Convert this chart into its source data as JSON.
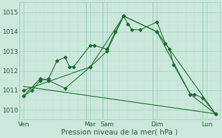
{
  "title": "",
  "xlabel": "Pression niveau de la mer( hPa )",
  "ylabel": "",
  "bg_color": "#cce8dc",
  "grid_color_major": "#99ccbb",
  "grid_color_minor": "#bbddd0",
  "line_color": "#1a6b2a",
  "ylim": [
    1009.5,
    1015.5
  ],
  "xlim": [
    0,
    24
  ],
  "day_labels": [
    "Ven",
    "Mar",
    "Sam",
    "Dim",
    "Lun"
  ],
  "day_x": [
    0.5,
    8.5,
    10.5,
    16.5,
    22.5
  ],
  "vline_positions": [
    0,
    8,
    10,
    16,
    22,
    24
  ],
  "series": [
    {
      "x": [
        0.5,
        1.5,
        2.5,
        3.5,
        4.5,
        5.5,
        6.0,
        6.5,
        8.5,
        9.0,
        10.5,
        11.5,
        12.5,
        13.0,
        13.5,
        14.5,
        16.5,
        17.5,
        18.0,
        18.5,
        20.5,
        21.0,
        22.0,
        23.5
      ],
      "y": [
        1010.7,
        1011.0,
        1011.5,
        1011.6,
        1012.5,
        1012.7,
        1012.2,
        1012.2,
        1013.3,
        1013.3,
        1013.1,
        1014.0,
        1014.8,
        1014.4,
        1014.1,
        1014.1,
        1014.5,
        1013.4,
        1013.1,
        1012.3,
        1010.8,
        1010.8,
        1010.6,
        1009.8
      ],
      "marker": true
    },
    {
      "x": [
        0.5,
        2.5,
        3.5,
        5.5,
        8.5,
        10.5,
        12.5,
        16.5,
        20.5,
        23.5
      ],
      "y": [
        1010.7,
        1011.6,
        1011.5,
        1011.1,
        1012.2,
        1013.0,
        1014.8,
        1014.0,
        1010.8,
        1009.8
      ],
      "marker": true
    },
    {
      "x": [
        0.5,
        8.5,
        12.5,
        16.5,
        23.5
      ],
      "y": [
        1011.0,
        1012.2,
        1014.8,
        1014.0,
        1009.8
      ],
      "marker": true
    },
    {
      "x": [
        0.5,
        23.5
      ],
      "y": [
        1011.2,
        1009.8
      ],
      "marker": false
    }
  ],
  "tick_fontsize": 6.5,
  "label_fontsize": 7.5
}
